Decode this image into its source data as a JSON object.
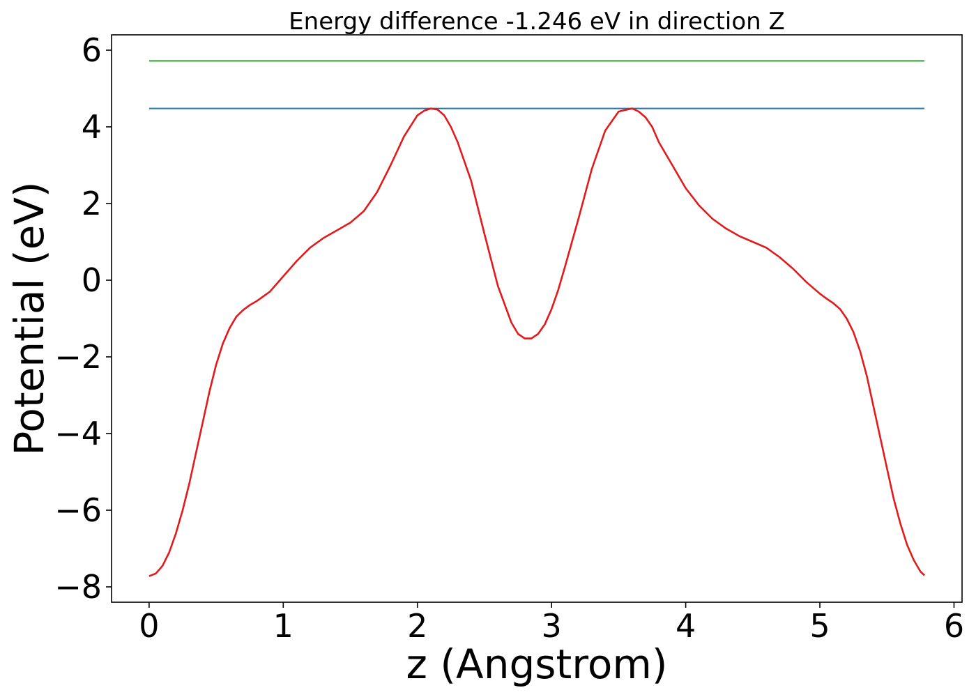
{
  "chart_data": {
    "type": "line",
    "title": "Energy difference -1.246 eV in direction Z",
    "xlabel": "z (Angstrom)",
    "ylabel": "Potential (eV)",
    "xlim": [
      -0.28,
      6.06
    ],
    "ylim": [
      -8.4,
      6.4
    ],
    "xticks": [
      0,
      1,
      2,
      3,
      4,
      5,
      6
    ],
    "xtick_labels": [
      "0",
      "1",
      "2",
      "3",
      "4",
      "5",
      "6"
    ],
    "yticks": [
      6,
      4,
      2,
      0,
      -2,
      -4,
      -6,
      -8
    ],
    "ytick_labels": [
      "6",
      "4",
      "2",
      "0",
      "−2",
      "−4",
      "−6",
      "−8"
    ],
    "grid": false,
    "series": [
      {
        "color": "#2ca02c",
        "x": [
          0,
          5.78
        ],
        "y": [
          5.72,
          5.72
        ]
      },
      {
        "color": "#1f77b4",
        "x": [
          0,
          5.78
        ],
        "y": [
          4.48,
          4.48
        ]
      },
      {
        "color": "#e31a1c",
        "x": [
          0,
          0.05,
          0.1,
          0.15,
          0.2,
          0.25,
          0.3,
          0.35,
          0.4,
          0.45,
          0.5,
          0.55,
          0.6,
          0.65,
          0.7,
          0.75,
          0.8,
          0.9,
          1.0,
          1.1,
          1.2,
          1.3,
          1.4,
          1.5,
          1.6,
          1.7,
          1.8,
          1.9,
          2.0,
          2.05,
          2.1,
          2.15,
          2.2,
          2.25,
          2.3,
          2.4,
          2.5,
          2.6,
          2.7,
          2.75,
          2.8,
          2.85,
          2.9,
          2.95,
          3.0,
          3.05,
          3.1,
          3.2,
          3.3,
          3.4,
          3.5,
          3.6,
          3.65,
          3.7,
          3.75,
          3.8,
          3.9,
          4.0,
          4.1,
          4.2,
          4.3,
          4.4,
          4.5,
          4.6,
          4.7,
          4.8,
          4.9,
          5.0,
          5.05,
          5.1,
          5.15,
          5.2,
          5.25,
          5.3,
          5.35,
          5.4,
          5.45,
          5.5,
          5.55,
          5.6,
          5.65,
          5.7,
          5.75,
          5.78
        ],
        "y": [
          -7.72,
          -7.65,
          -7.45,
          -7.1,
          -6.6,
          -6.0,
          -5.3,
          -4.5,
          -3.7,
          -2.9,
          -2.2,
          -1.65,
          -1.25,
          -0.95,
          -0.78,
          -0.65,
          -0.55,
          -0.3,
          0.1,
          0.5,
          0.85,
          1.1,
          1.3,
          1.5,
          1.8,
          2.3,
          3.0,
          3.75,
          4.3,
          4.42,
          4.48,
          4.45,
          4.3,
          4.0,
          3.6,
          2.6,
          1.2,
          -0.15,
          -1.1,
          -1.4,
          -1.52,
          -1.52,
          -1.4,
          -1.15,
          -0.75,
          -0.25,
          0.35,
          1.6,
          2.9,
          3.9,
          4.4,
          4.48,
          4.4,
          4.25,
          4.0,
          3.6,
          3.0,
          2.4,
          1.95,
          1.6,
          1.35,
          1.15,
          1.0,
          0.85,
          0.6,
          0.3,
          -0.05,
          -0.35,
          -0.48,
          -0.6,
          -0.75,
          -1.0,
          -1.35,
          -1.85,
          -2.5,
          -3.3,
          -4.1,
          -4.9,
          -5.7,
          -6.35,
          -6.9,
          -7.3,
          -7.6,
          -7.7
        ]
      }
    ]
  }
}
